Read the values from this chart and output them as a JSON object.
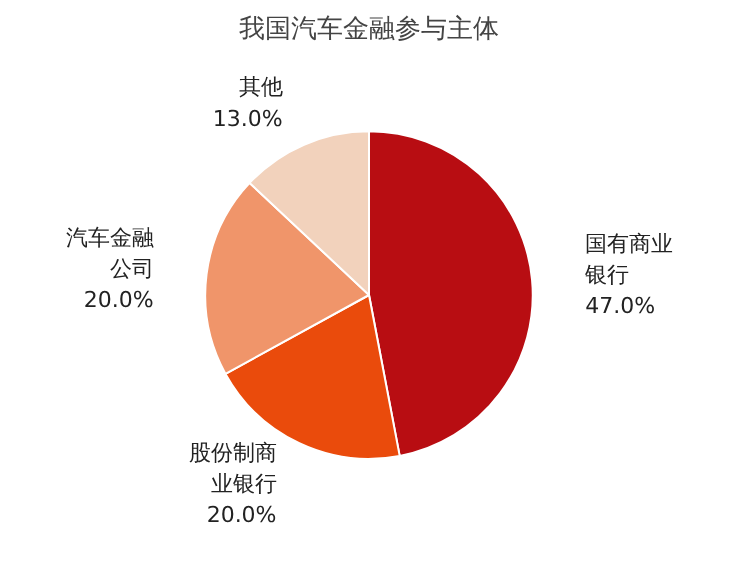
{
  "chart_data": {
    "type": "pie",
    "title": "我国汽车金融参与主体",
    "categories": [
      "国有商业银行",
      "股份制商业银行",
      "汽车金融公司",
      "其他"
    ],
    "values": [
      47.0,
      20.0,
      20.0,
      13.0
    ],
    "colors": [
      "#b80d12",
      "#ea4b0c",
      "#f0956a",
      "#f2d2bc"
    ],
    "value_labels": [
      "47.0%",
      "20.0%",
      "20.0%",
      "13.0%"
    ]
  }
}
